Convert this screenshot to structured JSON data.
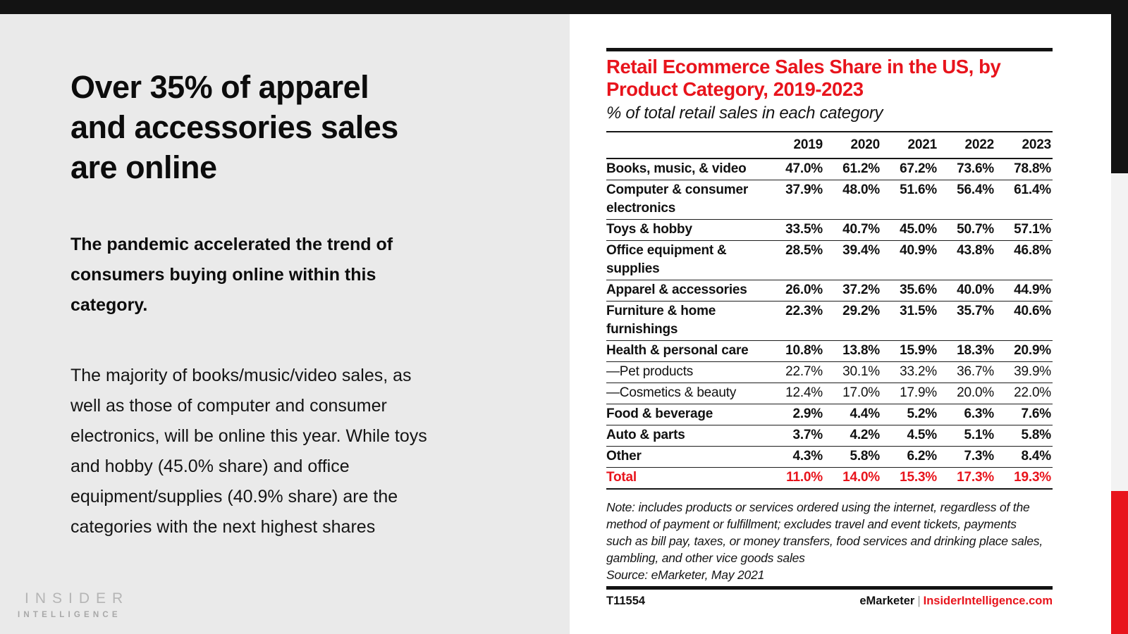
{
  "colors": {
    "accent_red": "#e8141c",
    "bar_black": "#131313",
    "panel_gray": "#eaeaea"
  },
  "left_panel": {
    "headline": "Over 35% of apparel\nand accessories sales\nare online",
    "lead_paragraph": "The pandemic accelerated the trend of\nconsumers buying online within this\ncategory.",
    "body_paragraph": "The majority of books/music/video sales, as\nwell as those of computer and consumer\nelectronics, will be online this year. While toys\nand hobby (45.0% share) and office\nequipment/supplies (40.9% share) are the\ncategories with the next highest shares",
    "logo_line1": "INSIDER",
    "logo_line2": "INTELLIGENCE"
  },
  "chart": {
    "title": "Retail Ecommerce Sales Share in the US, by\nProduct Category, 2019-2023",
    "subtitle": "% of total retail sales in each category",
    "note": "Note: includes products or services ordered using the internet, regardless of the\nmethod of payment or fulfillment; excludes travel and event tickets, payments\nsuch as bill pay, taxes, or money transfers, food services and drinking place sales,\ngambling, and other vice goods sales",
    "source": "Source: eMarketer, May 2021",
    "footer": {
      "chart_id": "T11554",
      "brand": "eMarketer",
      "separator": "|",
      "site": "InsiderIntelligence.com"
    }
  },
  "chart_data": {
    "type": "table",
    "title": "Retail Ecommerce Sales Share in the US, by Product Category, 2019-2023",
    "unit": "% of total retail sales in each category",
    "columns": [
      "2019",
      "2020",
      "2021",
      "2022",
      "2023"
    ],
    "rows": [
      {
        "label": "Books, music, & video",
        "values": [
          "47.0%",
          "61.2%",
          "67.2%",
          "73.6%",
          "78.8%"
        ],
        "style": "bold"
      },
      {
        "label": "Computer & consumer electronics",
        "values": [
          "37.9%",
          "48.0%",
          "51.6%",
          "56.4%",
          "61.4%"
        ],
        "style": "bold"
      },
      {
        "label": "Toys & hobby",
        "values": [
          "33.5%",
          "40.7%",
          "45.0%",
          "50.7%",
          "57.1%"
        ],
        "style": "bold"
      },
      {
        "label": "Office equipment & supplies",
        "values": [
          "28.5%",
          "39.4%",
          "40.9%",
          "43.8%",
          "46.8%"
        ],
        "style": "bold"
      },
      {
        "label": "Apparel & accessories",
        "values": [
          "26.0%",
          "37.2%",
          "35.6%",
          "40.0%",
          "44.9%"
        ],
        "style": "bold"
      },
      {
        "label": "Furniture & home furnishings",
        "values": [
          "22.3%",
          "29.2%",
          "31.5%",
          "35.7%",
          "40.6%"
        ],
        "style": "bold"
      },
      {
        "label": "Health & personal care",
        "values": [
          "10.8%",
          "13.8%",
          "15.9%",
          "18.3%",
          "20.9%"
        ],
        "style": "bold"
      },
      {
        "label": "—Pet products",
        "values": [
          "22.7%",
          "30.1%",
          "33.2%",
          "36.7%",
          "39.9%"
        ],
        "style": "sub"
      },
      {
        "label": "—Cosmetics & beauty",
        "values": [
          "12.4%",
          "17.0%",
          "17.9%",
          "20.0%",
          "22.0%"
        ],
        "style": "sub"
      },
      {
        "label": "Food & beverage",
        "values": [
          "2.9%",
          "4.4%",
          "5.2%",
          "6.3%",
          "7.6%"
        ],
        "style": "bold"
      },
      {
        "label": "Auto & parts",
        "values": [
          "3.7%",
          "4.2%",
          "4.5%",
          "5.1%",
          "5.8%"
        ],
        "style": "bold"
      },
      {
        "label": "Other",
        "values": [
          "4.3%",
          "5.8%",
          "6.2%",
          "7.3%",
          "8.4%"
        ],
        "style": "bold"
      },
      {
        "label": "Total",
        "values": [
          "11.0%",
          "14.0%",
          "15.3%",
          "17.3%",
          "19.3%"
        ],
        "style": "total"
      }
    ]
  }
}
